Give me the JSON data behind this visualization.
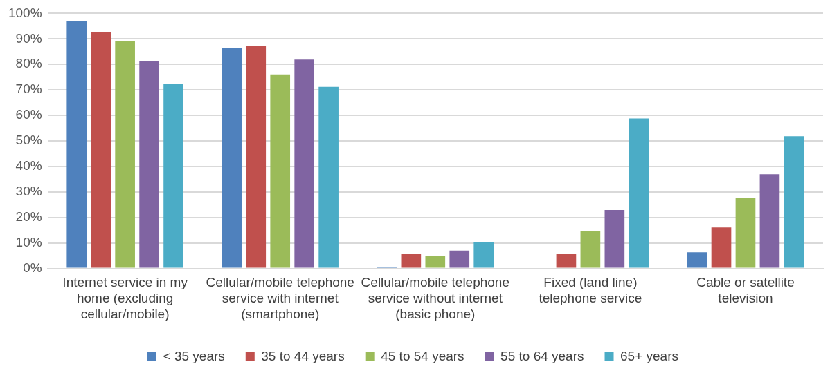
{
  "chart_data": {
    "type": "bar",
    "categories": [
      "Internet service in my home (excluding cellular/mobile)",
      "Cellular/mobile telephone service with internet (smartphone)",
      "Cellular/mobile telephone service without internet (basic phone)",
      "Fixed (land line) telephone service",
      "Cable or satellite television"
    ],
    "series": [
      {
        "name": "< 35 years",
        "color": "#4f81bd",
        "values": [
          97.0,
          86.3,
          0.4,
          0,
          6.3
        ]
      },
      {
        "name": "35 to 44 years",
        "color": "#c0504d",
        "values": [
          92.7,
          87.2,
          5.6,
          5.8,
          16.1
        ]
      },
      {
        "name": "45 to 54 years",
        "color": "#9bbb59",
        "values": [
          89.2,
          76.1,
          5.0,
          14.6,
          27.8
        ]
      },
      {
        "name": "55 to 64 years",
        "color": "#8064a2",
        "values": [
          81.3,
          81.9,
          7.0,
          22.9,
          36.9
        ]
      },
      {
        "name": "65+ years",
        "color": "#4bacc6",
        "values": [
          72.2,
          71.2,
          10.4,
          58.8,
          51.8
        ]
      }
    ],
    "ylim": [
      0,
      100
    ],
    "yticks": [
      {
        "value": 0,
        "label": "0%"
      },
      {
        "value": 10,
        "label": "10%"
      },
      {
        "value": 20,
        "label": "20%"
      },
      {
        "value": 30,
        "label": "30%"
      },
      {
        "value": 40,
        "label": "40%"
      },
      {
        "value": 50,
        "label": "50%"
      },
      {
        "value": 60,
        "label": "60%"
      },
      {
        "value": 70,
        "label": "70%"
      },
      {
        "value": 80,
        "label": "80%"
      },
      {
        "value": 90,
        "label": "90%"
      },
      {
        "value": 100,
        "label": "100%"
      }
    ],
    "grid": "y",
    "legend": "bottom"
  }
}
